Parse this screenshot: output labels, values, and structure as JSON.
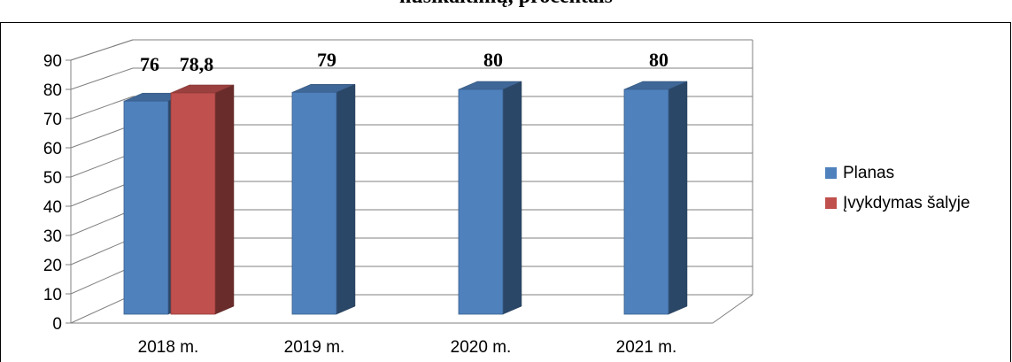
{
  "chart_data": {
    "type": "bar",
    "title": "nusikaltimų, procentais",
    "categories": [
      "2018 m.",
      "2019 m.",
      "2020 m.",
      "2021 m."
    ],
    "series": [
      {
        "name": "Planas",
        "color": "#4f81bd",
        "values": [
          76,
          79,
          80,
          80
        ]
      },
      {
        "name": "Įvykdymas šalyje",
        "color": "#c0504d",
        "values": [
          78.8,
          null,
          null,
          null
        ]
      }
    ],
    "data_labels": [
      [
        "76",
        "79",
        "80",
        "80"
      ],
      [
        "78,8",
        "",
        "",
        ""
      ]
    ],
    "ylim": [
      0,
      90
    ],
    "yticks": [
      "0",
      "10",
      "20",
      "30",
      "40",
      "50",
      "60",
      "70",
      "80",
      "90"
    ],
    "grid": true,
    "legend_position": "right"
  }
}
